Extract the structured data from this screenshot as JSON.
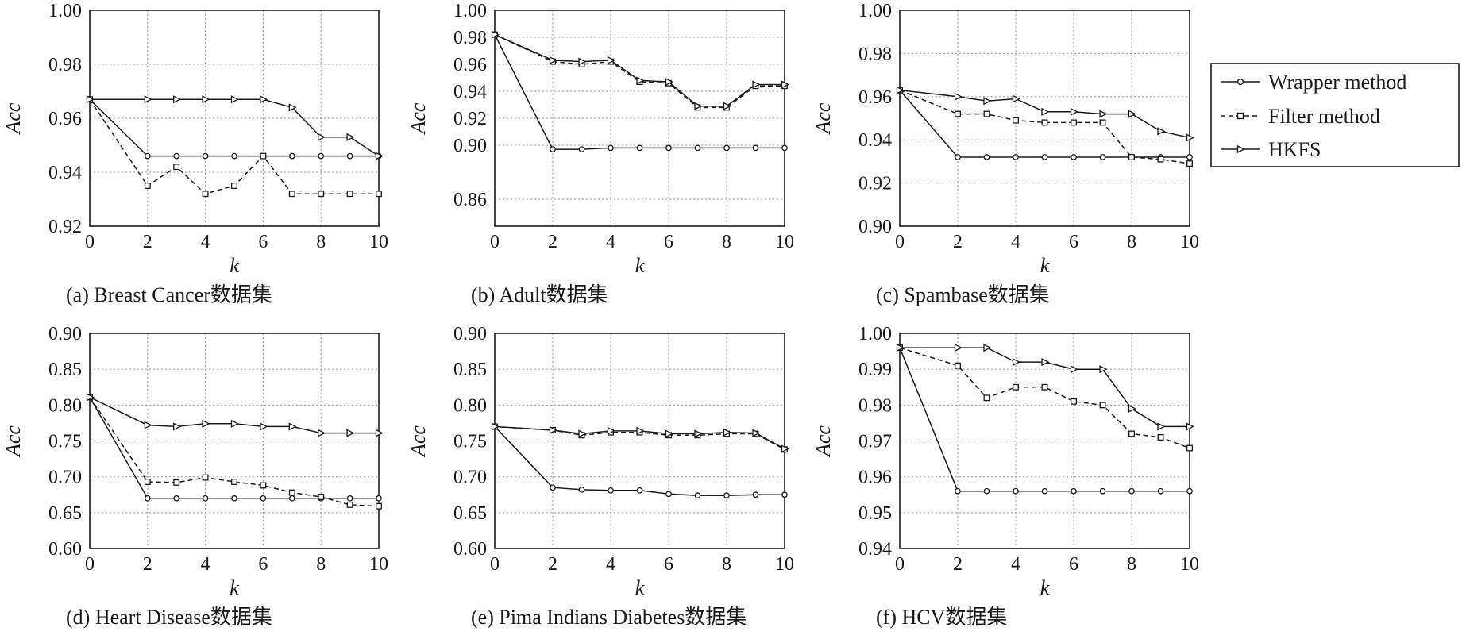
{
  "legend": [
    {
      "name": "Wrapper method",
      "marker": "circle",
      "dash": "solid"
    },
    {
      "name": "Filter method",
      "marker": "square",
      "dash": "dashed"
    },
    {
      "name": "HKFS",
      "marker": "triangle",
      "dash": "solid"
    }
  ],
  "chart_data": [
    {
      "type": "line",
      "caption": "(a) Breast Cancer数据集",
      "xlabel": "k",
      "ylabel": "Acc",
      "x": [
        0,
        2,
        3,
        4,
        5,
        6,
        7,
        8,
        9,
        10
      ],
      "xticks": [
        0,
        2,
        4,
        6,
        8,
        10
      ],
      "xlim": [
        0,
        10
      ],
      "ylim": [
        0.92,
        1.0
      ],
      "yticks": [
        "0.92",
        "0.94",
        "0.96",
        "0.98",
        "1.00"
      ],
      "series": [
        {
          "name": "Wrapper method",
          "values": [
            0.967,
            0.946,
            0.946,
            0.946,
            0.946,
            0.946,
            0.946,
            0.946,
            0.946,
            0.946
          ]
        },
        {
          "name": "Filter method",
          "values": [
            0.967,
            0.935,
            0.942,
            0.932,
            0.935,
            0.946,
            0.932,
            0.932,
            0.932,
            0.932
          ]
        },
        {
          "name": "HKFS",
          "values": [
            0.967,
            0.967,
            0.967,
            0.967,
            0.967,
            0.967,
            0.964,
            0.953,
            0.953,
            0.946
          ]
        }
      ]
    },
    {
      "type": "line",
      "caption": "(b) Adult数据集",
      "xlabel": "k",
      "ylabel": "Acc",
      "x": [
        0,
        2,
        3,
        4,
        5,
        6,
        7,
        8,
        9,
        10
      ],
      "xticks": [
        0,
        2,
        4,
        6,
        8,
        10
      ],
      "xlim": [
        0,
        10
      ],
      "ylim": [
        0.84,
        1.0
      ],
      "yticks": [
        "0.86",
        "0.90",
        "0.92",
        "0.94",
        "0.96",
        "0.98",
        "1.00"
      ],
      "series": [
        {
          "name": "Wrapper method",
          "values": [
            0.982,
            0.897,
            0.897,
            0.898,
            0.898,
            0.898,
            0.898,
            0.898,
            0.898,
            0.898
          ]
        },
        {
          "name": "Filter method",
          "values": [
            0.982,
            0.962,
            0.96,
            0.962,
            0.947,
            0.946,
            0.928,
            0.928,
            0.944,
            0.944
          ]
        },
        {
          "name": "HKFS",
          "values": [
            0.982,
            0.963,
            0.962,
            0.963,
            0.948,
            0.947,
            0.929,
            0.929,
            0.945,
            0.945
          ]
        }
      ]
    },
    {
      "type": "line",
      "caption": "(c) Spambase数据集",
      "xlabel": "k",
      "ylabel": "Acc",
      "x": [
        0,
        2,
        3,
        4,
        5,
        6,
        7,
        8,
        9,
        10
      ],
      "xticks": [
        0,
        2,
        4,
        6,
        8,
        10
      ],
      "xlim": [
        0,
        10
      ],
      "ylim": [
        0.9,
        1.0
      ],
      "yticks": [
        "0.90",
        "0.92",
        "0.94",
        "0.96",
        "0.98",
        "1.00"
      ],
      "series": [
        {
          "name": "Wrapper method",
          "values": [
            0.963,
            0.932,
            0.932,
            0.932,
            0.932,
            0.932,
            0.932,
            0.932,
            0.932,
            0.932
          ]
        },
        {
          "name": "Filter method",
          "values": [
            0.963,
            0.952,
            0.952,
            0.949,
            0.948,
            0.948,
            0.948,
            0.932,
            0.931,
            0.929
          ]
        },
        {
          "name": "HKFS",
          "values": [
            0.963,
            0.96,
            0.958,
            0.959,
            0.953,
            0.953,
            0.952,
            0.952,
            0.944,
            0.941
          ]
        }
      ]
    },
    {
      "type": "line",
      "caption": "(d) Heart Disease数据集",
      "xlabel": "k",
      "ylabel": "Acc",
      "x": [
        0,
        2,
        3,
        4,
        5,
        6,
        7,
        8,
        9,
        10
      ],
      "xticks": [
        0,
        2,
        4,
        6,
        8,
        10
      ],
      "xlim": [
        0,
        10
      ],
      "ylim": [
        0.6,
        0.9
      ],
      "yticks": [
        "0.60",
        "0.65",
        "0.70",
        "0.75",
        "0.80",
        "0.85",
        "0.90"
      ],
      "series": [
        {
          "name": "Wrapper method",
          "values": [
            0.811,
            0.67,
            0.67,
            0.67,
            0.67,
            0.67,
            0.67,
            0.67,
            0.67,
            0.67
          ]
        },
        {
          "name": "Filter method",
          "values": [
            0.811,
            0.693,
            0.692,
            0.699,
            0.693,
            0.688,
            0.678,
            0.672,
            0.661,
            0.659
          ]
        },
        {
          "name": "HKFS",
          "values": [
            0.811,
            0.772,
            0.77,
            0.774,
            0.774,
            0.77,
            0.77,
            0.761,
            0.761,
            0.761
          ]
        }
      ]
    },
    {
      "type": "line",
      "caption": "(e) Pima Indians Diabetes数据集",
      "xlabel": "k",
      "ylabel": "Acc",
      "x": [
        0,
        2,
        3,
        4,
        5,
        6,
        7,
        8,
        9,
        10
      ],
      "xticks": [
        0,
        2,
        4,
        6,
        8,
        10
      ],
      "xlim": [
        0,
        10
      ],
      "ylim": [
        0.6,
        0.9
      ],
      "yticks": [
        "0.60",
        "0.65",
        "0.70",
        "0.75",
        "0.80",
        "0.85",
        "0.90"
      ],
      "series": [
        {
          "name": "Wrapper method",
          "values": [
            0.77,
            0.685,
            0.682,
            0.681,
            0.681,
            0.676,
            0.674,
            0.674,
            0.675,
            0.675
          ]
        },
        {
          "name": "Filter method",
          "values": [
            0.77,
            0.765,
            0.758,
            0.762,
            0.762,
            0.758,
            0.758,
            0.76,
            0.76,
            0.738
          ]
        },
        {
          "name": "HKFS",
          "values": [
            0.77,
            0.765,
            0.76,
            0.764,
            0.764,
            0.76,
            0.76,
            0.762,
            0.761,
            0.739
          ]
        }
      ]
    },
    {
      "type": "line",
      "caption": "(f) HCV数据集",
      "xlabel": "k",
      "ylabel": "Acc",
      "x": [
        0,
        2,
        3,
        4,
        5,
        6,
        7,
        8,
        9,
        10
      ],
      "xticks": [
        0,
        2,
        4,
        6,
        8,
        10
      ],
      "xlim": [
        0,
        10
      ],
      "ylim": [
        0.94,
        1.0
      ],
      "yticks": [
        "0.94",
        "0.95",
        "0.96",
        "0.97",
        "0.98",
        "0.99",
        "1.00"
      ],
      "series": [
        {
          "name": "Wrapper method",
          "values": [
            0.996,
            0.956,
            0.956,
            0.956,
            0.956,
            0.956,
            0.956,
            0.956,
            0.956,
            0.956
          ]
        },
        {
          "name": "Filter method",
          "values": [
            0.996,
            0.991,
            0.982,
            0.985,
            0.985,
            0.981,
            0.98,
            0.972,
            0.971,
            0.968
          ]
        },
        {
          "name": "HKFS",
          "values": [
            0.996,
            0.996,
            0.996,
            0.992,
            0.992,
            0.99,
            0.99,
            0.979,
            0.974,
            0.974
          ]
        }
      ]
    }
  ]
}
